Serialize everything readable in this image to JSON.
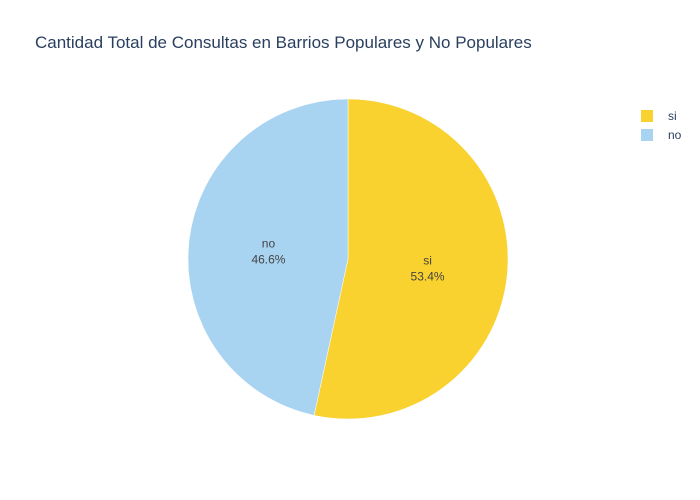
{
  "chart_data": {
    "type": "pie",
    "title": "Cantidad Total de Consultas en Barrios Populares y No Populares",
    "categories": [
      "si",
      "no"
    ],
    "values": [
      53.4,
      46.6
    ],
    "labels": [
      "53.4%",
      "46.6%"
    ],
    "colors": [
      "#f9d22f",
      "#a8d3f1"
    ],
    "legend": {
      "position": "top-right",
      "items": [
        {
          "label": "si",
          "color": "#f9d22f"
        },
        {
          "label": "no",
          "color": "#a8d3f1"
        }
      ]
    }
  }
}
